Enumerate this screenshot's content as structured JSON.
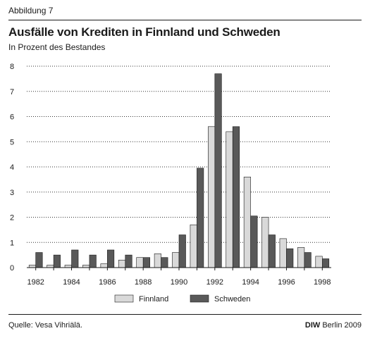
{
  "figure_label": "Abbildung 7",
  "title": "Ausfälle von Krediten in Finnland und Schweden",
  "subtitle": "In Prozent des Bestandes",
  "footer": {
    "source": "Quelle: Vesa Vihriälä.",
    "brand": "DIW",
    "credit_rest": " Berlin 2009"
  },
  "chart_data": {
    "type": "bar",
    "title": "Ausfälle von Krediten in Finnland und Schweden",
    "subtitle": "In Prozent des Bestandes",
    "categories": [
      "1982",
      "1983",
      "1984",
      "1985",
      "1986",
      "1987",
      "1988",
      "1989",
      "1990",
      "1991",
      "1992",
      "1993",
      "1994",
      "1995",
      "1996",
      "1997",
      "1998"
    ],
    "x_tick_labels": [
      "1982",
      "1984",
      "1986",
      "1988",
      "1990",
      "1992",
      "1994",
      "1996",
      "1998"
    ],
    "series": [
      {
        "name": "Finnland",
        "color": "#d9d9d9",
        "values": [
          0.1,
          0.1,
          0.1,
          0.1,
          0.15,
          0.3,
          0.4,
          0.55,
          0.6,
          1.7,
          5.6,
          5.4,
          3.6,
          2.0,
          1.15,
          0.8,
          0.45
        ]
      },
      {
        "name": "Schweden",
        "color": "#595959",
        "values": [
          0.6,
          0.5,
          0.7,
          0.5,
          0.7,
          0.5,
          0.4,
          0.4,
          1.3,
          3.95,
          7.7,
          5.6,
          2.05,
          1.3,
          0.75,
          0.6,
          0.35
        ]
      }
    ],
    "ylim": [
      0,
      8
    ],
    "y_ticks": [
      0,
      1,
      2,
      3,
      4,
      5,
      6,
      7,
      8
    ],
    "grid": "horizontal dotted",
    "legend_position": "bottom-center",
    "xlabel": "",
    "ylabel": ""
  }
}
